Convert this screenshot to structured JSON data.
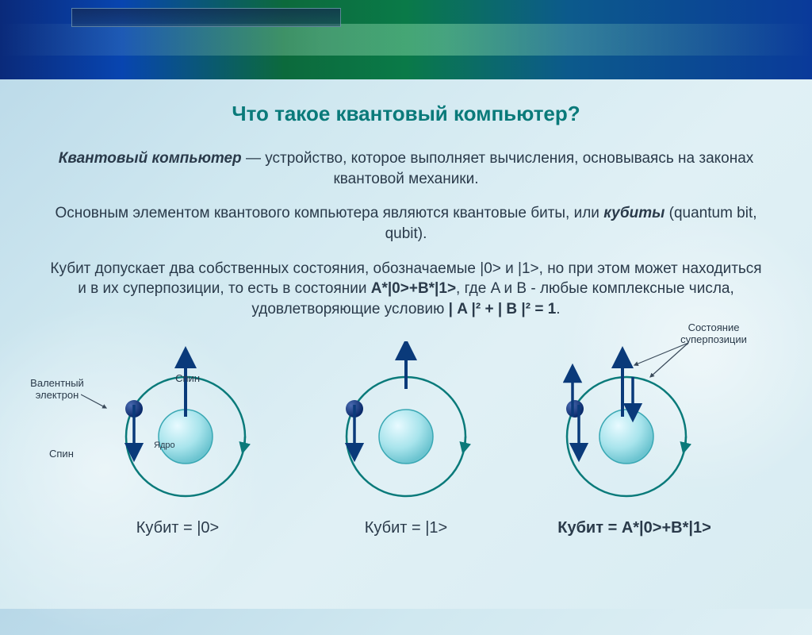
{
  "title": "Что такое квантовый компьютер?",
  "definition_lead": "Квантовый компьютер",
  "definition_rest": " — устройство, которое выполняет вычисления, основываясь на законах квантовой механики.",
  "para2_a": "Основным элементом квантового компьютера являются квантовые биты, или ",
  "para2_b": "кубиты",
  "para2_c": " (quantum bit, qubit).",
  "para3_a": "Кубит допускает два собственных состояния, обозначаемые |0> и |1>, но при этом может находиться и в их суперпозиции, то есть в состоянии ",
  "para3_b": "A*|0>+B*|1>",
  "para3_c": ", где A и B - любые комплексные числа, удовлетворяющие условию ",
  "para3_d": "| A |² + | B |² = 1",
  "para3_e": ".",
  "annotations": {
    "valence": "Валентный\nэлектрон",
    "spin": "Спин",
    "nucleus": "Ядро",
    "superposition": "Состояние\nсуперпозиции"
  },
  "qubits": [
    {
      "label": "Кубит = |0>",
      "arrows": "up"
    },
    {
      "label": "Кубит = |1>",
      "arrows": "down"
    },
    {
      "label": "Кубит = A*|0>+B*|1>",
      "arrows": "both"
    }
  ],
  "style": {
    "orbit_radius": 75,
    "orbit_stroke": "#0a7a7a",
    "orbit_stroke_width": 2.5,
    "nucleus_radius": 34,
    "nucleus_fill_top": "#d8f4f8",
    "nucleus_fill_bot": "#7cd0da",
    "nucleus_stroke": "#3aa8b4",
    "electron_radius": 11,
    "electron_fill": "#1a3a7a",
    "arrow_color": "#0a3a7a",
    "arrow_color_dark": "#0a7a7a",
    "title_color": "#0a7a7a",
    "text_color": "#2a3a4a",
    "title_fontsize": 26,
    "body_fontsize": 19,
    "annotation_fontsize": 13,
    "qubit_label_fontsize": 20
  }
}
